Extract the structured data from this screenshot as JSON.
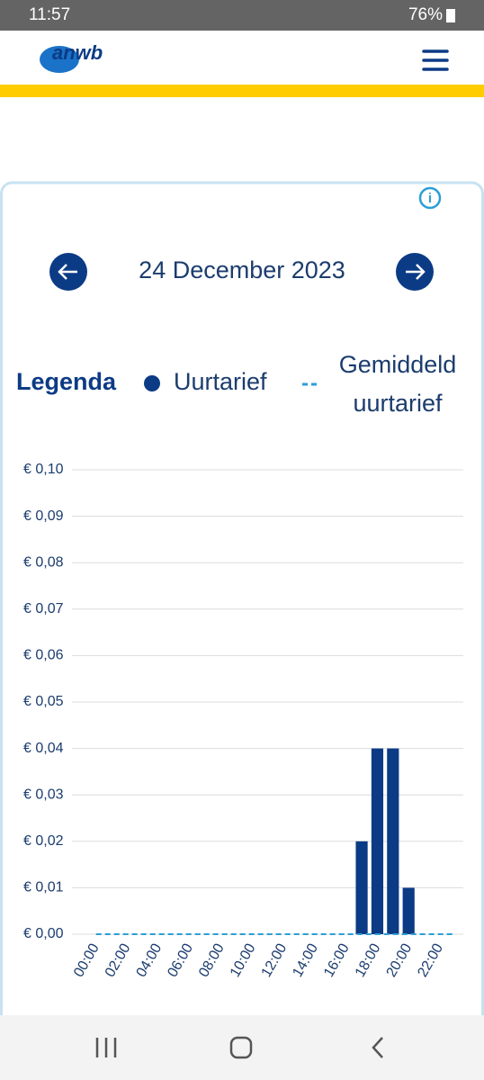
{
  "status_bar": {
    "time": "11:57",
    "battery": "76%"
  },
  "header": {
    "logo": "anwb"
  },
  "date_nav": {
    "date": "24 December 2023"
  },
  "legend": {
    "title": "Legenda"
  },
  "chart_data": {
    "type": "bar",
    "categories": [
      "00:00",
      null,
      "02:00",
      null,
      "04:00",
      null,
      "06:00",
      null,
      "08:00",
      null,
      "10:00",
      null,
      "12:00",
      null,
      "14:00",
      null,
      "16:00",
      null,
      "18:00",
      null,
      "20:00",
      null,
      "22:00",
      null
    ],
    "series": [
      {
        "name": "Uurtarief",
        "color": "#0c3b85",
        "type": "bar",
        "values": [
          0,
          0,
          0,
          0,
          0,
          0,
          0,
          0,
          0,
          0,
          0,
          0,
          0,
          0,
          0,
          0,
          0,
          0.02,
          0.04,
          0.04,
          0.01,
          0,
          0,
          0
        ]
      },
      {
        "name": "Gemiddeld uurtarief",
        "color": "#2a9fd6",
        "type": "line",
        "values": [
          0,
          0,
          0,
          0,
          0,
          0,
          0,
          0,
          0,
          0,
          0,
          0,
          0,
          0,
          0,
          0,
          0,
          0,
          0,
          0,
          0,
          0,
          0,
          0
        ]
      }
    ],
    "ylim": [
      0,
      0.1
    ],
    "yticks": [
      {
        "value": 0,
        "label": "€ 0,00"
      },
      {
        "value": 0.01,
        "label": "€ 0,01"
      },
      {
        "value": 0.02,
        "label": "€ 0,02"
      },
      {
        "value": 0.03,
        "label": "€ 0,03"
      },
      {
        "value": 0.04,
        "label": "€ 0,04"
      },
      {
        "value": 0.05,
        "label": "€ 0,05"
      },
      {
        "value": 0.06,
        "label": "€ 0,06"
      },
      {
        "value": 0.07,
        "label": "€ 0,07"
      },
      {
        "value": 0.08,
        "label": "€ 0,08"
      },
      {
        "value": 0.09,
        "label": "€ 0,09"
      },
      {
        "value": 0.1,
        "label": "€ 0,10"
      }
    ],
    "grid": true
  }
}
